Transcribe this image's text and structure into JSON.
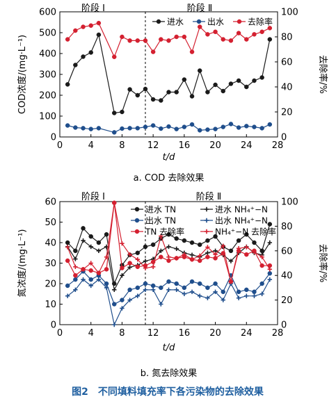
{
  "figure_caption": "图2　不同填料填充率下各污染物的去除效果",
  "chart_data": [
    {
      "type": "line",
      "caption": "a. COD 去除效果",
      "xlabel": "t/d",
      "ylabel": "COD浓度/(mg·L⁻¹)",
      "y2label": "去除率/%",
      "xlim": [
        0,
        28
      ],
      "ylim": [
        0,
        600
      ],
      "y2lim": [
        0,
        100
      ],
      "xticks": [
        0,
        4,
        8,
        12,
        16,
        20,
        24,
        28
      ],
      "yticks": [
        0,
        100,
        200,
        300,
        400,
        500,
        600
      ],
      "y2ticks": [
        0,
        20,
        40,
        60,
        80,
        100
      ],
      "phase_labels": [
        "阶段 Ⅰ",
        "阶段 Ⅱ"
      ],
      "phase_divider_x": 11,
      "legend_position": "top-center",
      "series": [
        {
          "name": "进水",
          "axis": "left",
          "color": "#1a1a1a",
          "marker": "circle",
          "x": [
            1,
            2,
            3,
            4,
            5,
            7,
            8,
            9,
            10,
            11,
            12,
            13,
            14,
            15,
            16,
            17,
            18,
            19,
            20,
            21,
            22,
            23,
            24,
            25,
            26,
            27
          ],
          "y": [
            252,
            345,
            385,
            405,
            490,
            115,
            120,
            228,
            200,
            230,
            180,
            175,
            215,
            215,
            275,
            195,
            318,
            215,
            250,
            220,
            255,
            270,
            240,
            270,
            285,
            468
          ]
        },
        {
          "name": "出水",
          "axis": "left",
          "color": "#1f4e8c",
          "marker": "circle",
          "x": [
            1,
            2,
            3,
            4,
            5,
            7,
            8,
            9,
            10,
            11,
            12,
            13,
            14,
            15,
            16,
            17,
            18,
            19,
            20,
            21,
            22,
            23,
            24,
            25,
            26,
            27
          ],
          "y": [
            55,
            45,
            42,
            38,
            42,
            22,
            40,
            42,
            42,
            48,
            55,
            40,
            50,
            38,
            48,
            60,
            32,
            35,
            38,
            48,
            62,
            45,
            52,
            48,
            42,
            60
          ]
        },
        {
          "name": "去除率",
          "axis": "right",
          "color": "#d42030",
          "marker": "circle",
          "x": [
            1,
            2,
            3,
            4,
            5,
            7,
            8,
            9,
            10,
            11,
            12,
            13,
            14,
            15,
            16,
            17,
            18,
            19,
            20,
            21,
            22,
            23,
            24,
            25,
            26,
            27
          ],
          "y": [
            78,
            85,
            88,
            89,
            91,
            64,
            80,
            77,
            77,
            77,
            68,
            78,
            77,
            80,
            80,
            68,
            88,
            82,
            84,
            78,
            77,
            83,
            78,
            82,
            84,
            87
          ]
        }
      ]
    },
    {
      "type": "line",
      "caption": "b. 氮去除效果",
      "xlabel": "t/d",
      "ylabel": "氮浓度/(mg·L⁻¹)",
      "y2label": "去除率/%",
      "xlim": [
        0,
        28
      ],
      "ylim": [
        0,
        60
      ],
      "y2lim": [
        0,
        100
      ],
      "xticks": [
        0,
        4,
        8,
        12,
        16,
        20,
        24,
        28
      ],
      "yticks": [
        0,
        10,
        20,
        30,
        40,
        50,
        60
      ],
      "y2ticks": [
        0,
        20,
        40,
        60,
        80,
        100
      ],
      "phase_labels": [
        "阶段 Ⅰ",
        "阶段 Ⅱ"
      ],
      "phase_divider_x": 11,
      "legend_position": "top-right",
      "series": [
        {
          "name": "进水 TN",
          "axis": "left",
          "color": "#1a1a1a",
          "marker": "circle",
          "x": [
            1,
            2,
            3,
            4,
            5,
            6,
            7,
            8,
            9,
            10,
            11,
            12,
            13,
            14,
            15,
            16,
            17,
            18,
            19,
            20,
            21,
            22,
            23,
            24,
            25,
            26,
            27
          ],
          "y": [
            40,
            36,
            47,
            43,
            40,
            44,
            20,
            29,
            34,
            35,
            38,
            39,
            42,
            44,
            42,
            41,
            40,
            39,
            41,
            43,
            38,
            36,
            41,
            44,
            40,
            36,
            49
          ]
        },
        {
          "name": "进水 NH₄⁺−N",
          "axis": "left",
          "color": "#1a1a1a",
          "marker": "cross",
          "x": [
            1,
            2,
            3,
            4,
            5,
            6,
            7,
            8,
            9,
            10,
            11,
            12,
            13,
            14,
            15,
            16,
            17,
            18,
            19,
            20,
            21,
            22,
            23,
            24,
            25,
            26,
            27
          ],
          "y": [
            38,
            32,
            41,
            38,
            36,
            38,
            17,
            24,
            28,
            29,
            31,
            32,
            36,
            38,
            37,
            35,
            34,
            33,
            35,
            36,
            34,
            31,
            35,
            38,
            35,
            34,
            40
          ]
        },
        {
          "name": "出水 TN",
          "axis": "left",
          "color": "#1f4e8c",
          "marker": "circle",
          "x": [
            1,
            2,
            3,
            4,
            5,
            6,
            7,
            8,
            9,
            10,
            11,
            12,
            13,
            14,
            15,
            16,
            17,
            18,
            19,
            20,
            21,
            22,
            23,
            24,
            25,
            26,
            27
          ],
          "y": [
            19,
            22,
            26,
            22,
            24,
            20,
            10,
            12,
            17,
            18,
            20,
            19,
            18,
            21,
            20,
            18,
            21,
            20,
            18,
            20,
            16,
            24,
            16,
            17,
            16,
            20,
            25
          ]
        },
        {
          "name": "出水 NH₄⁺−N",
          "axis": "left",
          "color": "#1f4e8c",
          "marker": "cross",
          "x": [
            1,
            2,
            3,
            4,
            5,
            6,
            7,
            8,
            9,
            10,
            11,
            12,
            13,
            14,
            15,
            16,
            17,
            18,
            19,
            20,
            21,
            22,
            23,
            24,
            25,
            26,
            27
          ],
          "y": [
            14,
            17,
            22,
            19,
            22,
            18,
            0,
            8,
            12,
            14,
            17,
            17,
            10,
            17,
            17,
            15,
            16,
            14,
            13,
            16,
            12,
            20,
            13,
            14,
            14,
            15,
            22
          ]
        },
        {
          "name": "TN 去除率",
          "axis": "right",
          "color": "#d42030",
          "marker": "circle",
          "x": [
            1,
            2,
            3,
            4,
            5,
            6,
            7,
            8,
            9,
            10,
            11,
            12,
            13,
            14,
            15,
            16,
            17,
            18,
            19,
            20,
            21,
            22,
            23,
            24,
            25,
            26,
            27
          ],
          "y": [
            52,
            40,
            45,
            44,
            42,
            45,
            99,
            46,
            50,
            47,
            48,
            51,
            55,
            52,
            54,
            55,
            53,
            52,
            55,
            54,
            58,
            35,
            60,
            57,
            60,
            48,
            48
          ]
        },
        {
          "name": "NH₄⁺−N 去除率",
          "axis": "right",
          "color": "#d42030",
          "marker": "cross",
          "x": [
            1,
            2,
            3,
            4,
            5,
            6,
            7,
            8,
            9,
            10,
            11,
            12,
            13,
            14,
            15,
            16,
            17,
            18,
            19,
            20,
            21,
            22,
            23,
            24,
            25,
            26,
            27
          ],
          "y": [
            63,
            47,
            45,
            50,
            42,
            55,
            99,
            66,
            57,
            53,
            46,
            47,
            72,
            55,
            54,
            57,
            53,
            56,
            63,
            57,
            64,
            35,
            62,
            63,
            59,
            55,
            45
          ]
        }
      ]
    }
  ]
}
